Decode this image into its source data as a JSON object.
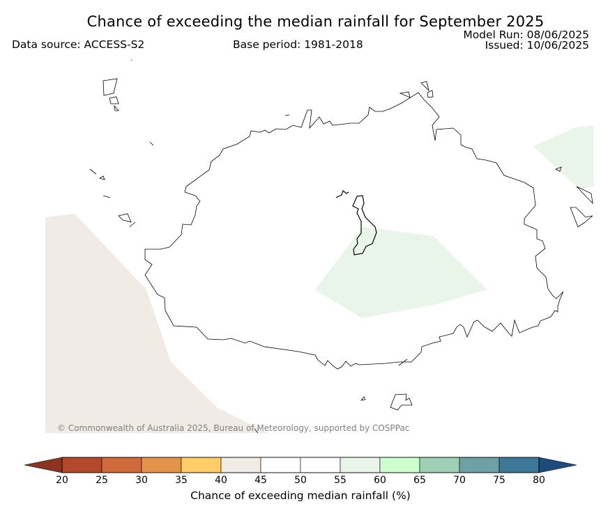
{
  "title": "Chance of exceeding the median rainfall for September 2025",
  "data_source": "Data source: ACCESS-S2",
  "base_period": "Base period: 1981-2018",
  "model_run": "Model Run: 08/06/2025",
  "issued": "Issued: 10/06/2025",
  "copyright": "© Commonwealth of Australia 2025, Bureau of Meteorology, supported by COSPPac",
  "legend": {
    "label": "Chance of exceeding median rainfall (%)",
    "ticks": [
      "20",
      "25",
      "30",
      "35",
      "40",
      "45",
      "50",
      "55",
      "60",
      "65",
      "70",
      "75",
      "80"
    ],
    "colors": [
      "#b3492a",
      "#cf6a3a",
      "#e39448",
      "#fdcd67",
      "#f0ebe5",
      "#ffffff",
      "#ffffff",
      "#e9f5e8",
      "#ccffcc",
      "#9fd0b5",
      "#6ea1a6",
      "#3e7899"
    ],
    "under_color": "#8d3421",
    "over_color": "#1d4c7c"
  },
  "map_regions": {
    "west_category_color": "#f0ebe5",
    "central_category_color": "#e9f5e8",
    "northeast_category_color": "#e9f5e8"
  }
}
